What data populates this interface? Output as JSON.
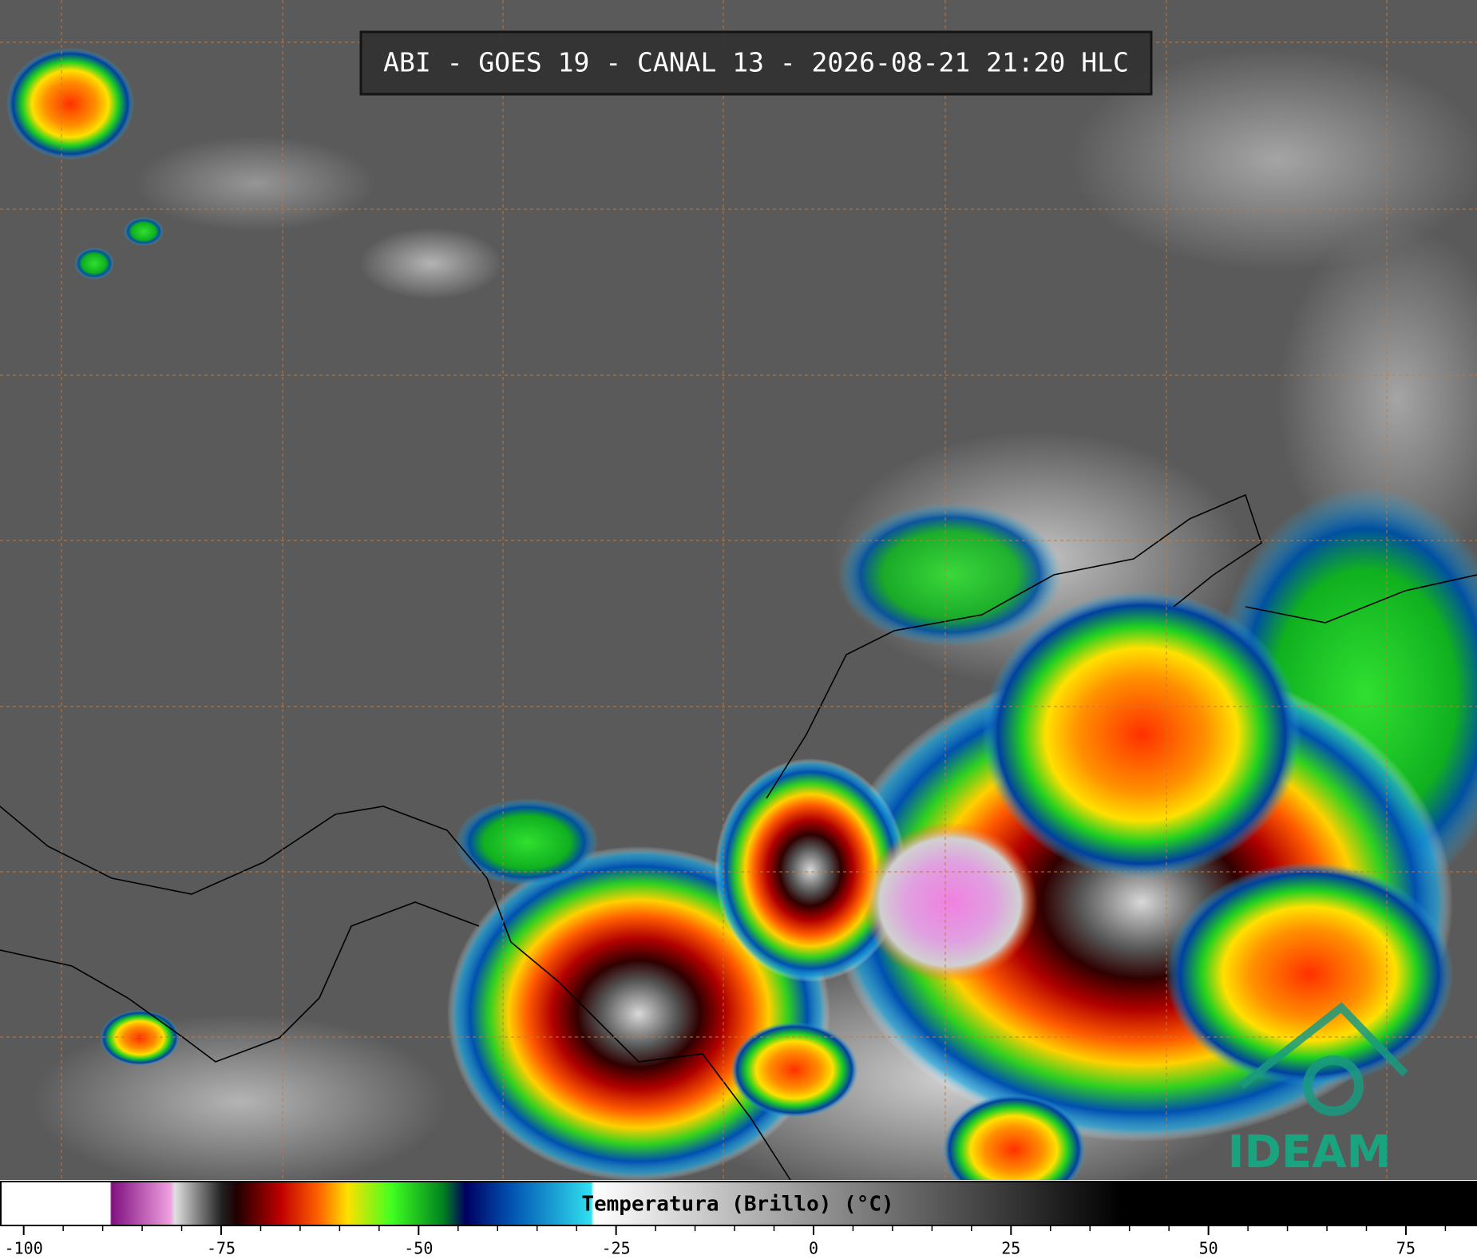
{
  "title": "ABI - GOES 19 - CANAL 13 - 2026-08-21 21:20 HLC",
  "colorbar": {
    "label": "Temperatura (Brillo) (°C)",
    "lim": [
      -103,
      84
    ],
    "ticks": [
      -100,
      -75,
      -50,
      -25,
      0,
      25,
      50,
      75
    ],
    "minor_ticks": [
      -95,
      -90,
      -85,
      -80,
      -70,
      -65,
      -60,
      -55,
      -45,
      -40,
      -35,
      -30,
      -20,
      -15,
      -10,
      -5,
      5,
      10,
      15,
      20,
      30,
      35,
      40,
      45,
      55,
      60,
      65,
      70,
      80
    ]
  },
  "logo": "IDEAM"
}
